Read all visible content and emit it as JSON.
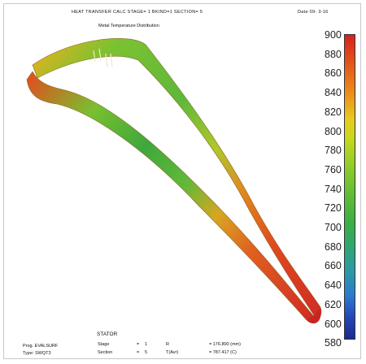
{
  "header": {
    "title": "HEAT TRANSFER CALC STAGE= 1  BKIND=1  SECTION= 5",
    "date": "Date  09- 3-16",
    "subtitle": "Metal Temperature Distribution"
  },
  "colorbar": {
    "ticks": [
      "900",
      "880",
      "860",
      "840",
      "820",
      "800",
      "780",
      "760",
      "740",
      "720",
      "700",
      "680",
      "660",
      "640",
      "620",
      "600",
      "580"
    ],
    "colors": {
      "hot": "#d62020",
      "mid": "#e6cc1f",
      "warm": "#64bd36",
      "cool": "#2a9aa8",
      "cold": "#1a2a8e"
    }
  },
  "footer": {
    "heading": "STATOR",
    "prog": "Prog. EVALSURF",
    "type": "Type: SWQT3",
    "stage_label": "Stage",
    "stage_eq": "=",
    "stage_value": "1",
    "r_label": "R",
    "r_value": "= 176.800  (mm)",
    "section_label": "Section",
    "section_eq": "=",
    "section_value": "5",
    "tavr_label": "T(Avr)",
    "tavr_value": "= 787.417  (C)"
  }
}
